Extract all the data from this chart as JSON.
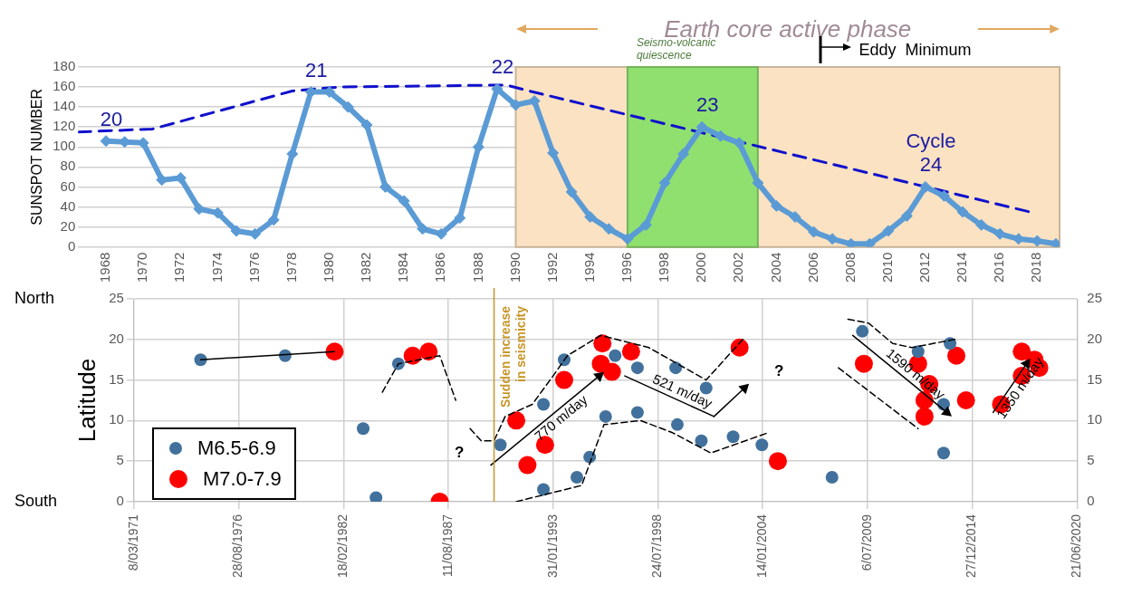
{
  "chart_data": [
    {
      "type": "line",
      "x": [
        1968,
        1969,
        1970,
        1971,
        1972,
        1973,
        1974,
        1975,
        1976,
        1977,
        1978,
        1979,
        1980,
        1981,
        1982,
        1983,
        1984,
        1985,
        1986,
        1987,
        1988,
        1989,
        1990,
        1991,
        1992,
        1993,
        1994,
        1995,
        1996,
        1997,
        1998,
        1999,
        2000,
        2001,
        2002,
        2003,
        2004,
        2005,
        2006,
        2007,
        2008,
        2009,
        2010,
        2011,
        2012,
        2013,
        2014,
        2015,
        2016,
        2017,
        2018,
        2019
      ],
      "series": [
        {
          "color": "#5b9bd5",
          "marker": "diamond",
          "values": [
            106,
            105,
            104,
            67,
            69,
            38,
            34,
            16,
            13,
            27,
            93,
            155,
            155,
            140,
            122,
            60,
            46,
            18,
            13,
            29,
            100,
            158,
            142,
            146,
            94,
            55,
            30,
            18,
            8,
            22,
            64,
            93,
            120,
            111,
            104,
            64,
            41,
            30,
            15,
            8,
            3,
            3,
            16,
            31,
            60,
            51,
            35,
            22,
            13,
            8,
            6,
            3
          ]
        },
        {
          "type": "line",
          "color": "#1010cc",
          "marker": "none",
          "line_style": "dashed",
          "x": [
            1966.5,
            1970.5,
            1978,
            1980.5,
            1989.5,
            1990.5,
            2017.6
          ],
          "values": [
            115,
            118,
            156,
            160,
            162,
            157,
            35
          ]
        }
      ],
      "xlim": [
        1966.5,
        2019.2
      ],
      "xticks": [
        1968,
        1970,
        1972,
        1974,
        1976,
        1978,
        1980,
        1982,
        1984,
        1986,
        1988,
        1990,
        1992,
        1994,
        1996,
        1998,
        2000,
        2002,
        2004,
        2006,
        2008,
        2010,
        2012,
        2014,
        2016,
        2018
      ],
      "ylim": [
        0,
        180
      ],
      "yticks": [
        0,
        20,
        40,
        60,
        80,
        100,
        120,
        140,
        160,
        180
      ],
      "ylabel": "SUNSPOT NUMBER",
      "grid": "y",
      "bands": [
        {
          "axis": "x",
          "from": 1990,
          "to": 2019.2,
          "label": "Earth core active phase",
          "color": "#fbe2c2"
        },
        {
          "axis": "x",
          "from": 1996,
          "to": 2003,
          "label": "Seismo-volcanic\nquiescence",
          "color": "#90e070"
        }
      ],
      "annotations": [
        {
          "text": "20",
          "x": 1968,
          "y": 106
        },
        {
          "text": "21",
          "x": 1979,
          "y": 155
        },
        {
          "text": "22",
          "x": 1989,
          "y": 158
        },
        {
          "text": "23",
          "x": 2000,
          "y": 120
        },
        {
          "text": "Cycle\n24",
          "x": 2012,
          "y": 60
        },
        "Eddy  Minimum"
      ]
    },
    {
      "type": "scatter",
      "marker": "circle",
      "series": [
        {
          "name": "M6.5-6.9",
          "color": "#41719c",
          "x": [
            "1974-09",
            "1979-02",
            "1983-03",
            "1983-11",
            "1985-01",
            "1990-05",
            "1992-08",
            "1992-08",
            "1993-09",
            "1994-05",
            "1995-01",
            "1995-11",
            "1996-05",
            "1997-07",
            "1997-07",
            "1999-07",
            "1999-08",
            "2000-11",
            "2001-02",
            "2002-07",
            "2004-01",
            "2007-09",
            "2009-04",
            "2012-03",
            "2013-07",
            "2013-07",
            "2013-11"
          ],
          "values": [
            17.5,
            18,
            9,
            0.5,
            17,
            7,
            12,
            1.5,
            17.5,
            3,
            5.5,
            10.5,
            18,
            16.5,
            11,
            16.5,
            9.5,
            7.5,
            14,
            8,
            7,
            3,
            21,
            18.5,
            12,
            6,
            19.5
          ]
        },
        {
          "name": "M7.0-7.9",
          "color": "#ff0000",
          "x": [
            "1981-09",
            "1985-10",
            "1986-08",
            "1987-03",
            "1991-03",
            "1991-10",
            "1992-09",
            "1993-09",
            "1995-09",
            "1995-08",
            "1996-03",
            "1997-03",
            "2002-11",
            "2004-11",
            "2009-05",
            "2012-03",
            "2012-10",
            "2012-07",
            "2012-07",
            "2014-03",
            "2014-09",
            "2016-07",
            "2017-08",
            "2017-08",
            "2018-04",
            "2018-07"
          ],
          "values": [
            18.5,
            18,
            18.5,
            0,
            10,
            4.5,
            7,
            15,
            19.5,
            17,
            16,
            18.5,
            19,
            5,
            17,
            17,
            14.5,
            12.5,
            10.5,
            18,
            12.5,
            12,
            18.5,
            15.5,
            17.5,
            16.5
          ]
        },
        {
          "type": "line",
          "color": "#000000",
          "marker": "none",
          "x": [
            "1974-09",
            "1981-09"
          ],
          "values": [
            17.5,
            18.5
          ]
        },
        {
          "type": "line",
          "color": "#000000",
          "marker": "none",
          "line_style": "dashed",
          "x": [
            "1984-03",
            "1985-01",
            "1987-03",
            "1988-01"
          ],
          "values": [
            13.5,
            17,
            18,
            12.5
          ]
        },
        {
          "type": "line",
          "color": "#000000",
          "marker": "none",
          "line_style": "dashed",
          "x": [
            "1988-10",
            "1989-05",
            "1990-01",
            "1990-08",
            "1992-01",
            "1993-02",
            "1993-11",
            "1995-08",
            "1998-02",
            "2001-02",
            "2003-01"
          ],
          "values": [
            9,
            7.5,
            7.5,
            10.5,
            12,
            15.5,
            18,
            20.5,
            19,
            15,
            20
          ]
        },
        {
          "type": "line",
          "color": "#000000",
          "marker": "none",
          "line_style": "dashed",
          "x": [
            "1991-03",
            "1994-08",
            "1995-10",
            "1997-09",
            "1999-05",
            "2001-05",
            "2004-05"
          ],
          "values": [
            0,
            2,
            9.5,
            10,
            8.5,
            6,
            8.5
          ]
        },
        {
          "type": "line",
          "color": "#000000",
          "marker": "none",
          "line_style": "dashed",
          "x": [
            "2008-07",
            "2009-08",
            "2010-11",
            "2011-11",
            "2014-02"
          ],
          "values": [
            22.5,
            22,
            19.5,
            19,
            20
          ]
        },
        {
          "type": "line",
          "color": "#000000",
          "marker": "none",
          "line_style": "dashed",
          "x": [
            "2008-01",
            "2012-03"
          ],
          "values": [
            16.5,
            9
          ]
        },
        {
          "type": "line",
          "name": "770 m/day",
          "color": "#000000",
          "marker": "triangle",
          "x": [
            "1989-11",
            "1995-07"
          ],
          "values": [
            4.5,
            15.5
          ]
        },
        {
          "type": "line",
          "name": "521 m/day",
          "color": "#000000",
          "marker": "none",
          "x": [
            "1996-11",
            "2001-07"
          ],
          "values": [
            15.5,
            10.5
          ]
        },
        {
          "type": "line",
          "color": "#000000",
          "marker": "triangle",
          "x": [
            "2001-07",
            "2003-02"
          ],
          "values": [
            10.5,
            14
          ]
        },
        {
          "type": "line",
          "name": "1590 m/day",
          "color": "#000000",
          "marker": "triangle",
          "x": [
            "2008-10",
            "2013-09"
          ],
          "values": [
            20.5,
            11
          ]
        },
        {
          "type": "line",
          "name": "1350 m/day",
          "color": "#000000",
          "marker": "triangle",
          "x": [
            "2016-02",
            "2017-11"
          ],
          "values": [
            11,
            17
          ]
        }
      ],
      "xlim": [
        "1971-03-08",
        "2020-06-21"
      ],
      "xticks": [
        {
          "value": "1971-03-08",
          "label": "8/03/1971"
        },
        {
          "value": "1976-08-28",
          "label": "28/08/1976"
        },
        {
          "value": "1982-02-18",
          "label": "18/02/1982"
        },
        {
          "value": "1987-08-11",
          "label": "11/08/1987"
        },
        {
          "value": "1993-01-31",
          "label": "31/01/1993"
        },
        {
          "value": "1998-07-24",
          "label": "24/07/1998"
        },
        {
          "value": "2004-01-14",
          "label": "14/01/2004"
        },
        {
          "value": "2009-07-06",
          "label": "6/07/2009"
        },
        {
          "value": "2014-12-27",
          "label": "27/12/2014"
        },
        {
          "value": "2020-06-21",
          "label": "21/06/2020"
        }
      ],
      "ylim": [
        0,
        25
      ],
      "yticks": [
        0,
        5,
        10,
        15,
        20,
        25
      ],
      "y2lim": [
        0,
        25
      ],
      "y2ticks": [
        0,
        5,
        10,
        15,
        20,
        25
      ],
      "ylabel": "Latitude",
      "grid": true,
      "legend": "bottom left",
      "ref_lines": [
        {
          "axis": "x",
          "value": "1990-01",
          "label": "Sudden increase\nin seismicity",
          "color": "#c8962a"
        }
      ],
      "annotations": [
        "North",
        "South",
        "?",
        "?"
      ]
    }
  ]
}
